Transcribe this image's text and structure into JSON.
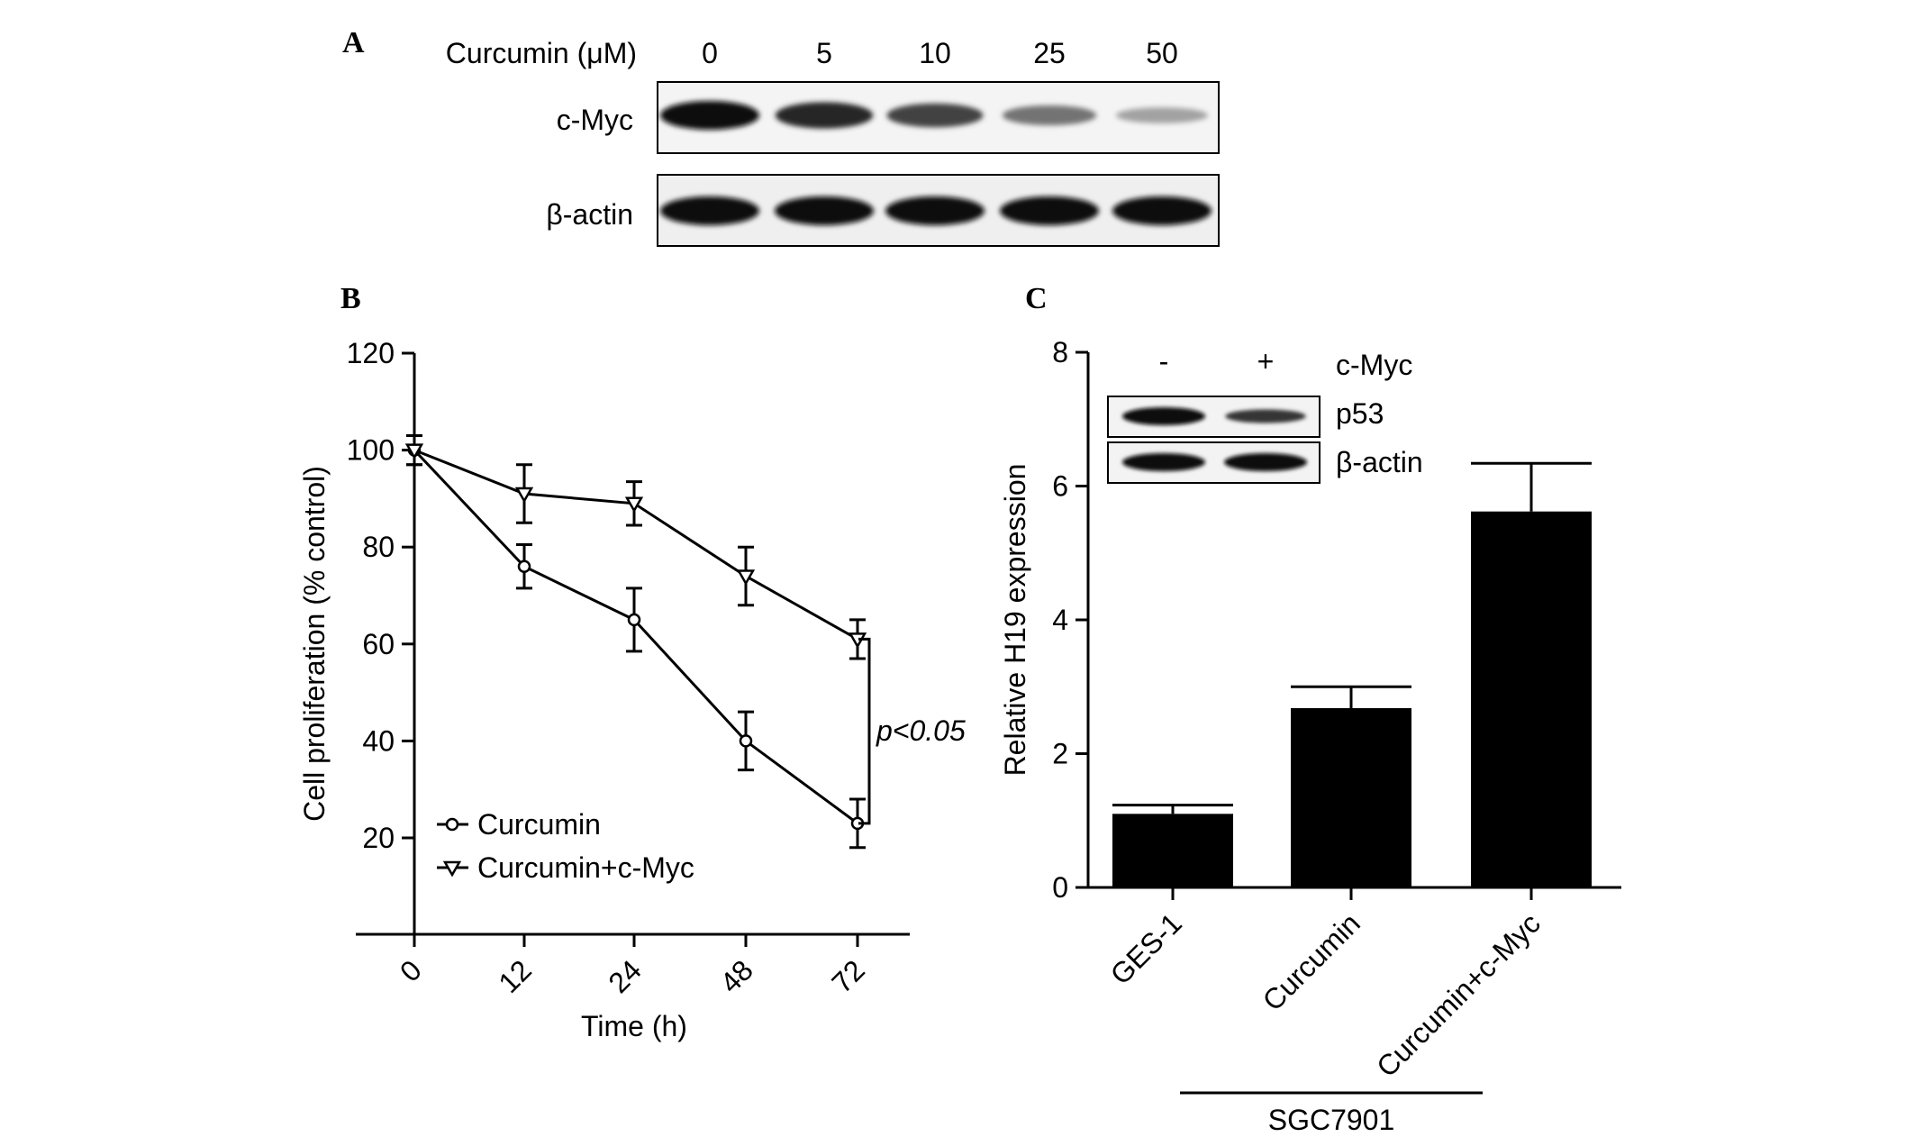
{
  "panels": {
    "A": {
      "letter": "A",
      "conc_label": "Curcumin (μM)",
      "concentrations": [
        "0",
        "5",
        "10",
        "25",
        "50"
      ],
      "rows": [
        "c-Myc",
        "β-actin"
      ],
      "band_intensity": {
        "c-Myc": [
          1.0,
          0.85,
          0.7,
          0.45,
          0.2
        ],
        "β-actin": [
          1.0,
          1.0,
          1.0,
          1.0,
          1.0
        ]
      }
    },
    "B": {
      "letter": "B",
      "annotation": "p<0.05"
    },
    "C": {
      "letter": "C",
      "inset": {
        "header_label": "c-Myc",
        "header_signs": [
          "-",
          "+"
        ],
        "rows": [
          "p53",
          "β-actin"
        ],
        "band_intensity": {
          "p53": [
            1.0,
            0.6
          ],
          "β-actin": [
            1.0,
            1.0
          ]
        }
      },
      "group_label": "SGC7901"
    }
  },
  "chart_data": [
    {
      "panel": "B",
      "type": "line",
      "xlabel": "Time (h)",
      "ylabel": "Cell proliferation (% control)",
      "x": [
        0,
        12,
        24,
        48,
        72
      ],
      "x_tick_labels": [
        "0",
        "12",
        "24",
        "48",
        "72"
      ],
      "ylim": [
        10,
        120
      ],
      "y_ticks": [
        20,
        40,
        60,
        80,
        100,
        120
      ],
      "series": [
        {
          "name": "Curcumin",
          "marker": "circle",
          "values": [
            100,
            76,
            65,
            40,
            23
          ],
          "errors": [
            3,
            4.5,
            6.5,
            6,
            5
          ]
        },
        {
          "name": "Curcumin+c-Myc",
          "marker": "triangle-down",
          "values": [
            100,
            91,
            89,
            74,
            61
          ],
          "errors": [
            3,
            6,
            4.5,
            6,
            4
          ]
        }
      ],
      "legend_position": "bottom-left",
      "grid": false
    },
    {
      "panel": "C",
      "type": "bar",
      "xlabel": "",
      "ylabel": "Relative H19 expression",
      "categories": [
        "GES-1",
        "Curcumin",
        "Curcumin+c-Myc"
      ],
      "values": [
        1.1,
        2.68,
        5.62
      ],
      "errors": [
        0.13,
        0.32,
        0.72
      ],
      "ylim": [
        0,
        8
      ],
      "y_ticks": [
        0,
        2,
        4,
        6,
        8
      ],
      "bar_color": "#000000",
      "grid": false
    }
  ]
}
